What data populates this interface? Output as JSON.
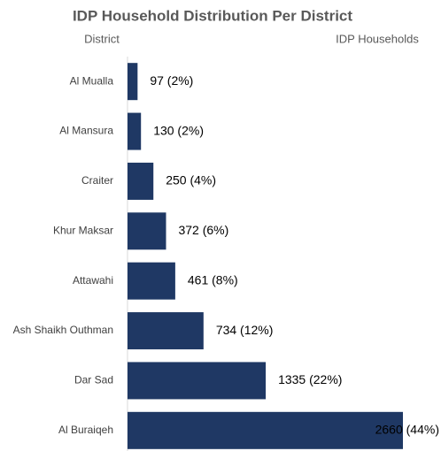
{
  "chart_data": {
    "type": "bar",
    "orientation": "horizontal",
    "title": "IDP Household Distribution Per District",
    "y_label": "District",
    "x_label": "IDP Households",
    "categories": [
      "Al Mualla",
      "Al Mansura",
      "Craiter",
      "Khur Maksar",
      "Attawahi",
      "Ash Shaikh Outhman",
      "Dar Sad",
      "Al Buraiqeh"
    ],
    "values": [
      97,
      130,
      250,
      372,
      461,
      734,
      1335,
      2660
    ],
    "value_labels": [
      "97 (2%)",
      "130 (2%)",
      "250 (4%)",
      "372 (6%)",
      "461 (8%)",
      "734 (12%)",
      "1335 (22%)",
      "2660 (44%)"
    ],
    "color": "#1f3864",
    "xlim": [
      0,
      2660
    ]
  }
}
